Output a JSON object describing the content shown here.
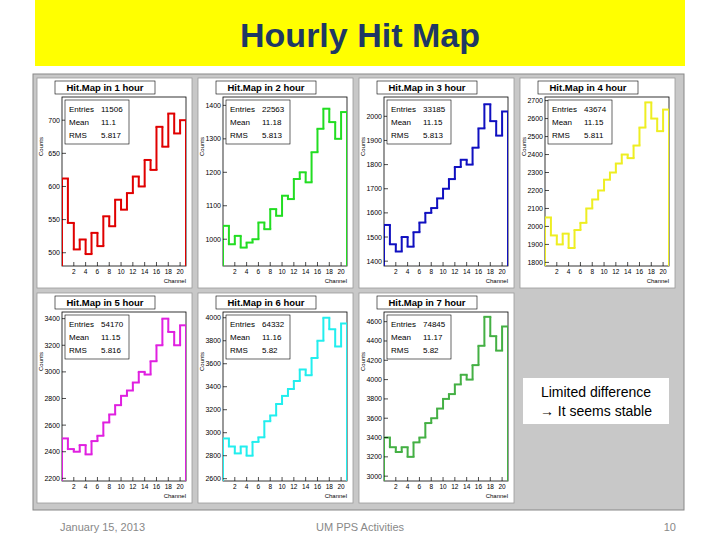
{
  "slide": {
    "title": "Hourly Hit Map",
    "annotation": [
      "Limited difference",
      "→ It seems stable"
    ],
    "footer": {
      "date": "January 15, 2013",
      "center": "UM PPS Activities",
      "page": "10"
    }
  },
  "chart_data": [
    {
      "type": "histogram",
      "title": "Hit.Map in 1 hour",
      "x_label": "Channel",
      "y_label": "Counts",
      "color": "#e00000",
      "bins": [
        0,
        1,
        2,
        3,
        4,
        5,
        6,
        7,
        8,
        9,
        10,
        11,
        12,
        13,
        14,
        15,
        16,
        17,
        18,
        19,
        20,
        21
      ],
      "values": [
        612,
        545,
        505,
        520,
        498,
        530,
        510,
        555,
        540,
        580,
        565,
        590,
        615,
        600,
        640,
        625,
        690,
        660,
        710,
        680,
        700
      ],
      "xlim": [
        0,
        21
      ],
      "xticks": [
        2,
        4,
        6,
        8,
        10,
        12,
        14,
        16,
        18,
        20
      ],
      "ylim": [
        480,
        735
      ],
      "yticks": [
        500,
        550,
        600,
        650,
        700
      ],
      "stats": [
        {
          "label": "Entries",
          "value": 11506
        },
        {
          "label": "Mean",
          "value": 11.1
        },
        {
          "label": "RMS",
          "value": 5.817
        }
      ]
    },
    {
      "type": "histogram",
      "title": "Hit.Map in 2 hour",
      "x_label": "Channel",
      "y_label": "Counts",
      "color": "#22dd22",
      "bins": [
        0,
        1,
        2,
        3,
        4,
        5,
        6,
        7,
        8,
        9,
        10,
        11,
        12,
        13,
        14,
        15,
        16,
        17,
        18,
        19,
        20,
        21
      ],
      "values": [
        1040,
        985,
        1010,
        975,
        990,
        1000,
        1050,
        1030,
        1090,
        1070,
        1130,
        1120,
        1180,
        1200,
        1170,
        1260,
        1330,
        1390,
        1350,
        1300,
        1380
      ],
      "xlim": [
        0,
        21
      ],
      "xticks": [
        2,
        4,
        6,
        8,
        10,
        12,
        14,
        16,
        18,
        20
      ],
      "ylim": [
        920,
        1425
      ],
      "yticks": [
        1000,
        1100,
        1200,
        1300,
        1400
      ],
      "stats": [
        {
          "label": "Entries",
          "value": 22563
        },
        {
          "label": "Mean",
          "value": 11.18
        },
        {
          "label": "RMS",
          "value": 5.813
        }
      ]
    },
    {
      "type": "histogram",
      "title": "Hit.Map in 3 hour",
      "x_label": "Channel",
      "y_label": "Counts",
      "color": "#1010c0",
      "bins": [
        0,
        1,
        2,
        3,
        4,
        5,
        6,
        7,
        8,
        9,
        10,
        11,
        12,
        13,
        14,
        15,
        16,
        17,
        18,
        19,
        20,
        21
      ],
      "values": [
        1550,
        1470,
        1440,
        1500,
        1460,
        1520,
        1560,
        1600,
        1620,
        1660,
        1700,
        1740,
        1790,
        1820,
        1800,
        1870,
        1950,
        2050,
        1980,
        1920,
        2020
      ],
      "xlim": [
        0,
        21
      ],
      "xticks": [
        2,
        4,
        6,
        8,
        10,
        12,
        14,
        16,
        18,
        20
      ],
      "ylim": [
        1380,
        2080
      ],
      "yticks": [
        1400,
        1500,
        1600,
        1700,
        1800,
        1900,
        2000
      ],
      "stats": [
        {
          "label": "Entries",
          "value": 33185
        },
        {
          "label": "Mean",
          "value": 11.15
        },
        {
          "label": "RMS",
          "value": 5.813
        }
      ]
    },
    {
      "type": "histogram",
      "title": "Hit.Map in 4 hour",
      "x_label": "Channel",
      "y_label": "Counts",
      "color": "#eeee22",
      "bins": [
        0,
        1,
        2,
        3,
        4,
        5,
        6,
        7,
        8,
        9,
        10,
        11,
        12,
        13,
        14,
        15,
        16,
        17,
        18,
        19,
        20,
        21
      ],
      "values": [
        2050,
        1950,
        1900,
        1960,
        1880,
        1980,
        2020,
        2100,
        2150,
        2200,
        2260,
        2300,
        2350,
        2400,
        2380,
        2450,
        2550,
        2690,
        2600,
        2530,
        2650
      ],
      "xlim": [
        0,
        21
      ],
      "xticks": [
        2,
        4,
        6,
        8,
        10,
        12,
        14,
        16,
        18,
        20
      ],
      "ylim": [
        1780,
        2720
      ],
      "yticks": [
        1800,
        1900,
        2000,
        2100,
        2200,
        2300,
        2400,
        2500,
        2600,
        2700
      ],
      "stats": [
        {
          "label": "Entries",
          "value": 43674
        },
        {
          "label": "Mean",
          "value": 11.15
        },
        {
          "label": "RMS",
          "value": 5.811
        }
      ]
    },
    {
      "type": "histogram",
      "title": "Hit.Map in 5 hour",
      "x_label": "Channel",
      "y_label": "Counts",
      "color": "#e020e0",
      "bins": [
        0,
        1,
        2,
        3,
        4,
        5,
        6,
        7,
        8,
        9,
        10,
        11,
        12,
        13,
        14,
        15,
        16,
        17,
        18,
        19,
        20,
        21
      ],
      "values": [
        2500,
        2420,
        2400,
        2450,
        2380,
        2480,
        2520,
        2620,
        2680,
        2750,
        2820,
        2860,
        2920,
        3000,
        2980,
        3080,
        3200,
        3400,
        3300,
        3200,
        3350
      ],
      "xlim": [
        0,
        21
      ],
      "xticks": [
        2,
        4,
        6,
        8,
        10,
        12,
        14,
        16,
        18,
        20
      ],
      "ylim": [
        2180,
        3450
      ],
      "yticks": [
        2200,
        2400,
        2600,
        2800,
        3000,
        3200,
        3400
      ],
      "stats": [
        {
          "label": "Entries",
          "value": 54170
        },
        {
          "label": "Mean",
          "value": 11.15
        },
        {
          "label": "RMS",
          "value": 5.816
        }
      ]
    },
    {
      "type": "histogram",
      "title": "Hit.Map in 6 hour",
      "x_label": "Channel",
      "y_label": "Counts",
      "color": "#22eeee",
      "bins": [
        0,
        1,
        2,
        3,
        4,
        5,
        6,
        7,
        8,
        9,
        10,
        11,
        12,
        13,
        14,
        15,
        16,
        17,
        18,
        19,
        20,
        21
      ],
      "values": [
        2950,
        2880,
        2820,
        2880,
        2800,
        2920,
        2960,
        3100,
        3150,
        3250,
        3320,
        3380,
        3450,
        3550,
        3500,
        3650,
        3800,
        4000,
        3900,
        3750,
        3950
      ],
      "xlim": [
        0,
        21
      ],
      "xticks": [
        2,
        4,
        6,
        8,
        10,
        12,
        14,
        16,
        18,
        20
      ],
      "ylim": [
        2580,
        4050
      ],
      "yticks": [
        2600,
        2800,
        3000,
        3200,
        3400,
        3600,
        3800,
        4000
      ],
      "stats": [
        {
          "label": "Entries",
          "value": 64332
        },
        {
          "label": "Mean",
          "value": 11.16
        },
        {
          "label": "RMS",
          "value": 5.82
        }
      ]
    },
    {
      "type": "histogram",
      "title": "Hit.Map in 7 hour",
      "x_label": "Channel",
      "y_label": "Counts",
      "color": "#44b044",
      "bins": [
        0,
        1,
        2,
        3,
        4,
        5,
        6,
        7,
        8,
        9,
        10,
        11,
        12,
        13,
        14,
        15,
        16,
        17,
        18,
        19,
        20,
        21
      ],
      "values": [
        3400,
        3300,
        3250,
        3300,
        3200,
        3350,
        3400,
        3550,
        3600,
        3700,
        3800,
        3850,
        3950,
        4050,
        4000,
        4150,
        4350,
        4650,
        4450,
        4300,
        4550
      ],
      "xlim": [
        0,
        21
      ],
      "xticks": [
        2,
        4,
        6,
        8,
        10,
        12,
        14,
        16,
        18,
        20
      ],
      "ylim": [
        2950,
        4700
      ],
      "yticks": [
        3000,
        3200,
        3400,
        3600,
        3800,
        4000,
        4200,
        4400,
        4600
      ],
      "stats": [
        {
          "label": "Entries",
          "value": 74845
        },
        {
          "label": "Mean",
          "value": 11.17
        },
        {
          "label": "RMS",
          "value": 5.82
        }
      ]
    }
  ]
}
